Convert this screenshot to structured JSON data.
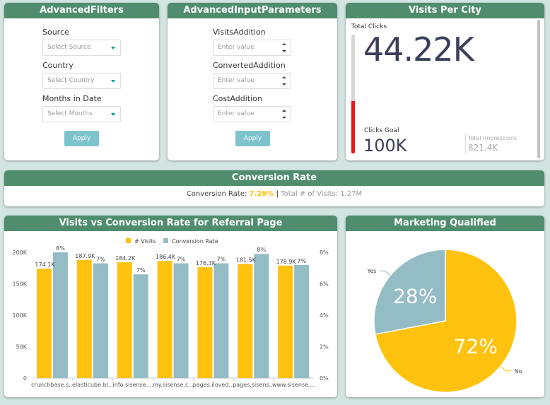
{
  "filters": {
    "title": "AdvancedFilters",
    "source_label": "Source",
    "source_placeholder": "Select Source",
    "country_label": "Country",
    "country_placeholder": "Select Country",
    "months_label": "Months in Date",
    "months_placeholder": "Select Months",
    "apply": "Apply"
  },
  "params": {
    "title": "AdvancedInputParameters",
    "visits_label": "VisitsAddition",
    "converted_label": "ConvertedAddition",
    "cost_label": "CostAddition",
    "placeholder": "Enter value",
    "apply": "Apply"
  },
  "visits_city": {
    "title": "Visits Per City",
    "total_label": "Total Clicks",
    "total_value": "44.22K",
    "goal_label": "Clicks Goal",
    "goal_value": "100K",
    "impr_label": "Total Impressions",
    "impr_value": "821.4K",
    "progress_fraction": 0.44
  },
  "conversion": {
    "title": "Conversion Rate",
    "rate_label": "Conversion Rate:",
    "rate_value": "7.29%",
    "separator": "|",
    "visits_label": "Total # of Visits:",
    "visits_value": "1.27M"
  },
  "colors": {
    "header": "#4f8d6e",
    "visits": "#ffc20e",
    "conversion": "#94bcc4",
    "progress": "#e8141a",
    "rate": "#ffbf00"
  },
  "chart_data": [
    {
      "type": "bar",
      "title": "Visits vs Conversion Rate for Referral Page",
      "categories": [
        "crunchbase.s...",
        "elasticube.bl...",
        "info.sisense....",
        "my.sisense.c...",
        "pages.iloved...",
        "pages.sisens...",
        "www.sisense...."
      ],
      "series": [
        {
          "name": "# Visits",
          "axis": "left",
          "values": [
            174100,
            187900,
            184200,
            186400,
            176300,
            181500,
            178900
          ],
          "labels": [
            "174.1K",
            "187.9K",
            "184.2K",
            "186.4K",
            "176.3K",
            "181.5K",
            "178.9K"
          ]
        },
        {
          "name": "Conversion Rate",
          "axis": "right",
          "values": [
            8,
            7,
            7,
            7,
            7,
            8,
            7
          ],
          "labels": [
            "8%",
            "7%",
            "7%",
            "7%",
            "7%",
            "8%",
            "7%"
          ],
          "heights_estimated": [
            8.0,
            7.3,
            6.6,
            7.3,
            7.3,
            7.9,
            7.2
          ]
        }
      ],
      "y_left": {
        "ticks": [
          "0",
          "50K",
          "100K",
          "150K",
          "200K"
        ],
        "lim": [
          0,
          200000
        ]
      },
      "y_right": {
        "ticks": [
          "0%",
          "2%",
          "4%",
          "6%",
          "8%"
        ],
        "lim": [
          0,
          8
        ]
      },
      "legend": "top",
      "grid": false
    },
    {
      "type": "pie",
      "title": "Marketing Qualified",
      "slices": [
        {
          "name": "No",
          "value": 72,
          "label": "72%"
        },
        {
          "name": "Yes",
          "value": 28,
          "label": "28%"
        }
      ]
    }
  ]
}
